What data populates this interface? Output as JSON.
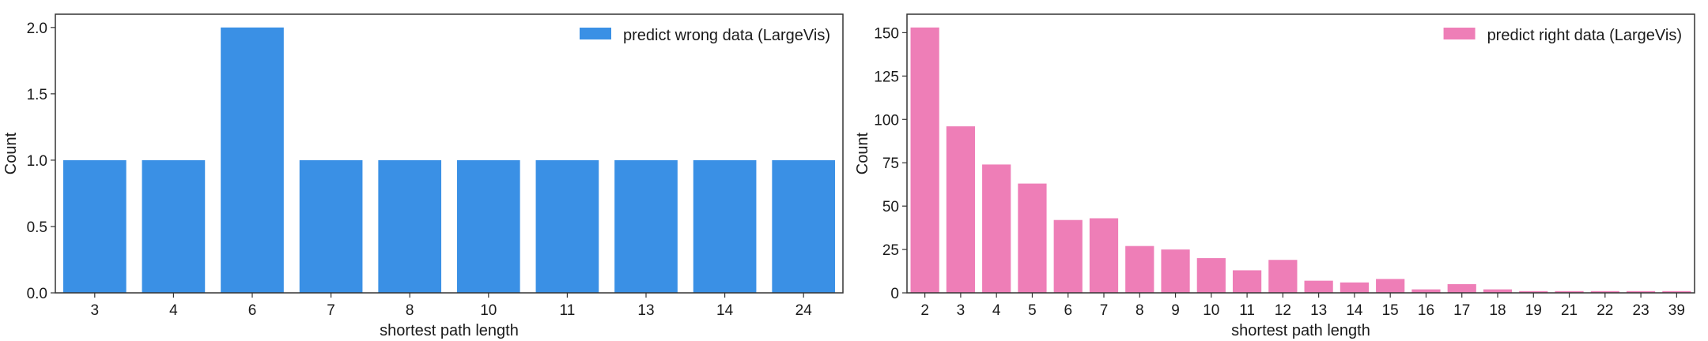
{
  "chart_data": [
    {
      "type": "bar",
      "categories": [
        "3",
        "4",
        "6",
        "7",
        "8",
        "10",
        "11",
        "13",
        "14",
        "24"
      ],
      "series": [
        {
          "name": "predict wrong data (LargeVis)",
          "values": [
            1,
            1,
            2,
            1,
            1,
            1,
            1,
            1,
            1,
            1
          ],
          "color": "#3a90e5"
        }
      ],
      "xlabel": "shortest path length",
      "ylabel": "Count",
      "ylim": [
        0,
        2.1
      ],
      "yticks": [
        "0.0",
        "0.5",
        "1.0",
        "1.5",
        "2.0"
      ],
      "ytick_values": [
        0,
        0.5,
        1,
        1.5,
        2
      ],
      "grid": false,
      "legend": "top-right"
    },
    {
      "type": "bar",
      "categories": [
        "2",
        "3",
        "4",
        "5",
        "6",
        "7",
        "8",
        "9",
        "10",
        "11",
        "12",
        "13",
        "14",
        "15",
        "16",
        "17",
        "18",
        "19",
        "21",
        "22",
        "23",
        "39"
      ],
      "series": [
        {
          "name": "predict right data (LargeVis)",
          "values": [
            153,
            96,
            74,
            63,
            42,
            43,
            27,
            25,
            20,
            13,
            19,
            7,
            6,
            8,
            2,
            5,
            2,
            1,
            1,
            1,
            1,
            1
          ],
          "color": "#ee7eb7"
        }
      ],
      "xlabel": "shortest path length",
      "ylabel": "Count",
      "ylim": [
        0,
        160.65
      ],
      "yticks": [
        "0",
        "25",
        "50",
        "75",
        "100",
        "125",
        "150"
      ],
      "ytick_values": [
        0,
        25,
        50,
        75,
        100,
        125,
        150
      ],
      "grid": false,
      "legend": "top-right"
    }
  ]
}
